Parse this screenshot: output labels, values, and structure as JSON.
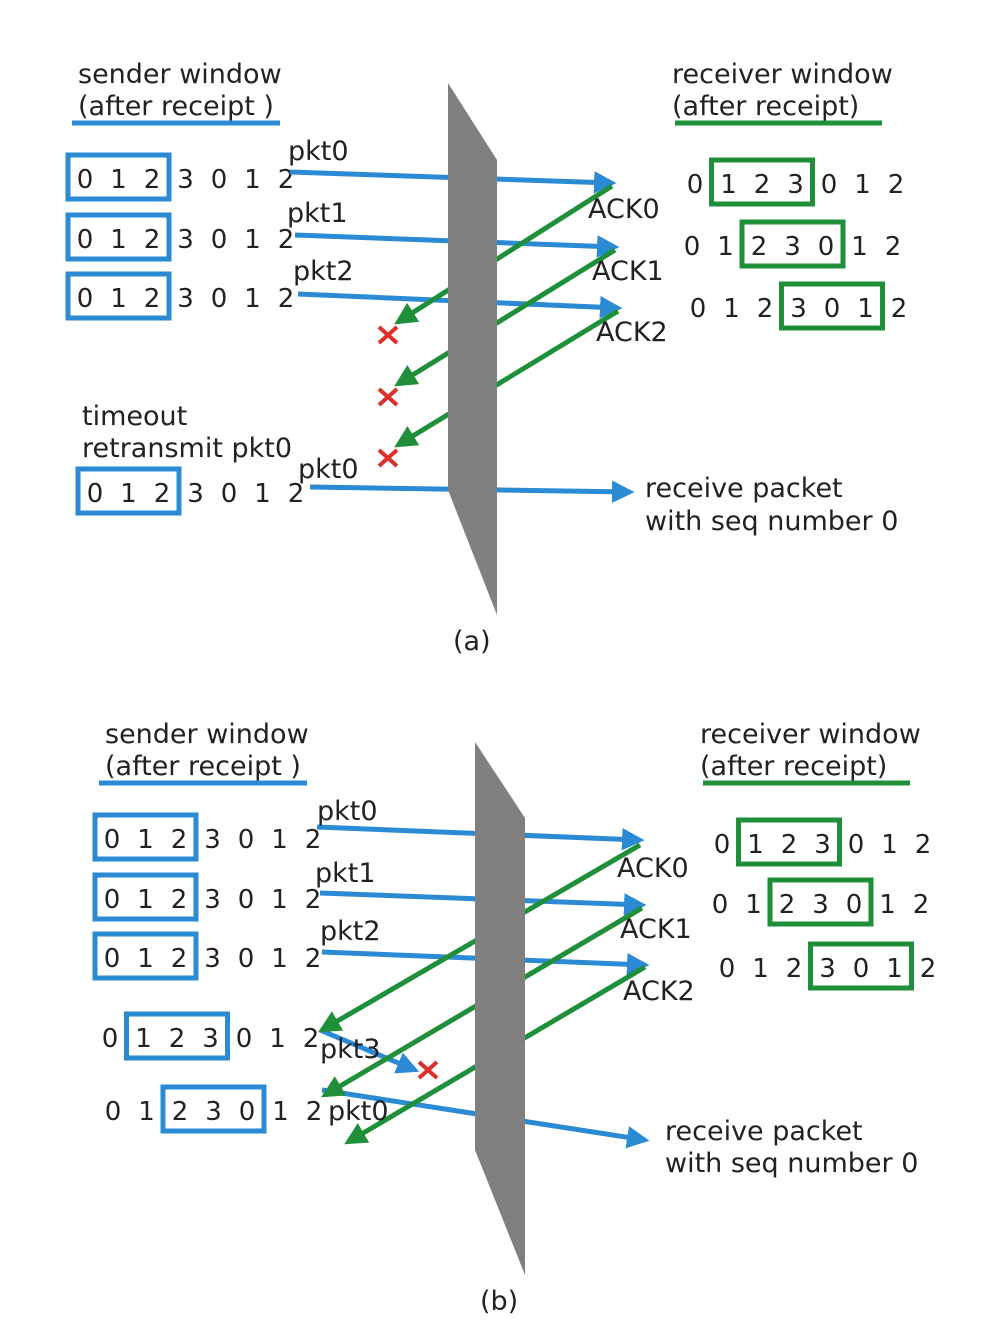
{
  "colors": {
    "sender": "#2a8ad4",
    "receiver": "#1f8f3a",
    "channel": "#808080",
    "loss": "#d9302a"
  },
  "panel_a": {
    "caption": "(a)",
    "sender_title": "sender window",
    "sender_subtitle": "(after receipt )",
    "receiver_title": "receiver window",
    "receiver_subtitle": "(after receipt)",
    "packets": [
      "pkt0",
      "pkt1",
      "pkt2"
    ],
    "acks": [
      "ACK0",
      "ACK1",
      "ACK2"
    ],
    "timeout": "timeout",
    "retransmit": "retransmit pkt0",
    "retransmit_packet": "pkt0",
    "receive_line1": "receive packet",
    "receive_line2": "with seq number 0",
    "sender_rows": [
      {
        "digits": [
          "0",
          "1",
          "2",
          "3",
          "0",
          "1",
          "2"
        ],
        "window_start": 0,
        "window_size": 3
      },
      {
        "digits": [
          "0",
          "1",
          "2",
          "3",
          "0",
          "1",
          "2"
        ],
        "window_start": 0,
        "window_size": 3
      },
      {
        "digits": [
          "0",
          "1",
          "2",
          "3",
          "0",
          "1",
          "2"
        ],
        "window_start": 0,
        "window_size": 3
      },
      {
        "digits": [
          "0",
          "1",
          "2",
          "3",
          "0",
          "1",
          "2"
        ],
        "window_start": 0,
        "window_size": 3
      }
    ],
    "receiver_rows": [
      {
        "digits": [
          "0",
          "1",
          "2",
          "3",
          "0",
          "1",
          "2"
        ],
        "window_start": 1,
        "window_size": 3
      },
      {
        "digits": [
          "0",
          "1",
          "2",
          "3",
          "0",
          "1",
          "2"
        ],
        "window_start": 2,
        "window_size": 3
      },
      {
        "digits": [
          "0",
          "1",
          "2",
          "3",
          "0",
          "1",
          "2"
        ],
        "window_start": 3,
        "window_size": 3
      }
    ]
  },
  "panel_b": {
    "caption": "(b)",
    "sender_title": "sender window",
    "sender_subtitle": "(after receipt )",
    "receiver_title": "receiver window",
    "receiver_subtitle": "(after receipt)",
    "packets": [
      "pkt0",
      "pkt1",
      "pkt2",
      "pkt3",
      "pkt0"
    ],
    "acks": [
      "ACK0",
      "ACK1",
      "ACK2"
    ],
    "receive_line1": "receive packet",
    "receive_line2": "with seq number 0",
    "sender_rows": [
      {
        "digits": [
          "0",
          "1",
          "2",
          "3",
          "0",
          "1",
          "2"
        ],
        "window_start": 0,
        "window_size": 3
      },
      {
        "digits": [
          "0",
          "1",
          "2",
          "3",
          "0",
          "1",
          "2"
        ],
        "window_start": 0,
        "window_size": 3
      },
      {
        "digits": [
          "0",
          "1",
          "2",
          "3",
          "0",
          "1",
          "2"
        ],
        "window_start": 0,
        "window_size": 3
      },
      {
        "digits": [
          "0",
          "1",
          "2",
          "3",
          "0",
          "1",
          "2"
        ],
        "window_start": 1,
        "window_size": 3
      },
      {
        "digits": [
          "0",
          "1",
          "2",
          "3",
          "0",
          "1",
          "2"
        ],
        "window_start": 2,
        "window_size": 3
      }
    ],
    "receiver_rows": [
      {
        "digits": [
          "0",
          "1",
          "2",
          "3",
          "0",
          "1",
          "2"
        ],
        "window_start": 1,
        "window_size": 3
      },
      {
        "digits": [
          "0",
          "1",
          "2",
          "3",
          "0",
          "1",
          "2"
        ],
        "window_start": 2,
        "window_size": 3
      },
      {
        "digits": [
          "0",
          "1",
          "2",
          "3",
          "0",
          "1",
          "2"
        ],
        "window_start": 3,
        "window_size": 3
      }
    ]
  }
}
